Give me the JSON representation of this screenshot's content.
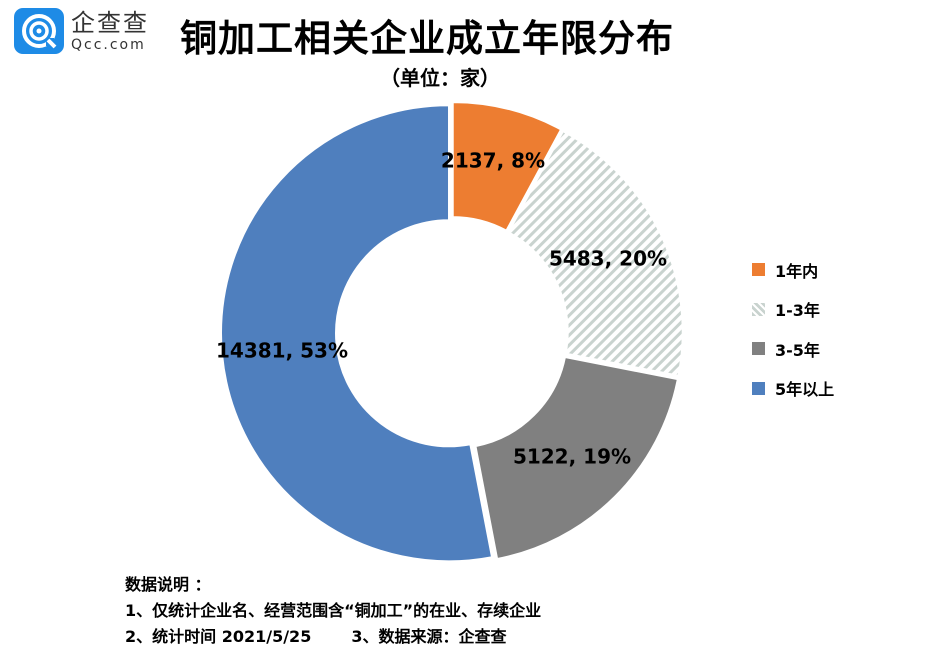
{
  "logo": {
    "cn": "企查查",
    "en": "Qcc.com"
  },
  "title": "铜加工相关企业成立年限分布",
  "subtitle": "（单位：家）",
  "chart_data": {
    "type": "pie",
    "donut": true,
    "title": "铜加工相关企业成立年限分布",
    "subtitle": "（单位：家）",
    "categories": [
      "1年内",
      "1-3年",
      "3-5年",
      "5年以上"
    ],
    "values": [
      2137,
      5483,
      5122,
      14381
    ],
    "percent_labels": [
      "8%",
      "20%",
      "19%",
      "53%"
    ],
    "data_labels": [
      "2137, 8%",
      "5483, 20%",
      "5122, 19%",
      "14381, 53%"
    ],
    "colors": [
      "#ed7d31",
      "#d8e0dc",
      "#808080",
      "#4f7fbe"
    ],
    "patterns": [
      "solid",
      "diagonal-hatch",
      "solid",
      "solid"
    ],
    "legend_position": "right"
  },
  "notes": {
    "heading": "数据说明 ：",
    "line1": "1、仅统计企业名、经营范围含“铜加工”的在业、存续企业",
    "line2a": "2、统计时间  2021/5/25",
    "line2b": "3、数据来源：企查查"
  }
}
